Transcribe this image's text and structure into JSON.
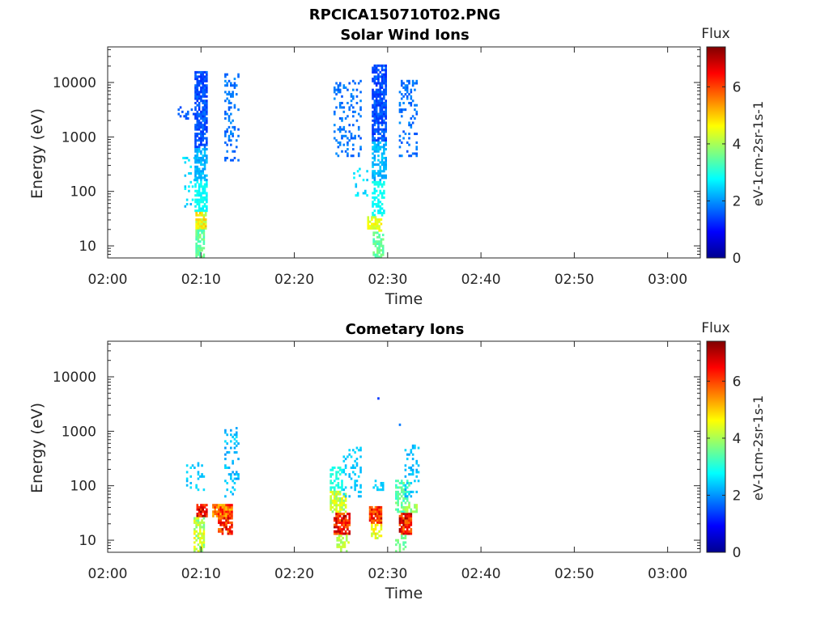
{
  "figure": {
    "title": "RPCICA150710T02.PNG"
  },
  "chart_data": [
    {
      "type": "heatmap",
      "title": "Solar Wind Ions",
      "xlabel": "Time",
      "ylabel": "Energy (eV)",
      "x_ticks": [
        "02:00",
        "02:10",
        "02:20",
        "02:30",
        "02:40",
        "02:50",
        "03:00"
      ],
      "x_range_minutes": [
        0,
        63.5
      ],
      "y_ticks": [
        10,
        100,
        1000,
        10000
      ],
      "y_scale": "log",
      "y_range": [
        6,
        45000
      ],
      "colorbar": {
        "title": "Flux",
        "label": "eV-1cm-2sr-1s-1",
        "ticks": [
          0,
          2,
          4,
          6
        ],
        "range": [
          0,
          7.4
        ],
        "colormap": "jet"
      },
      "blobs": [
        {
          "t": [
            9.3,
            10.6
          ],
          "e": [
            600,
            16000
          ],
          "v": [
            1.2,
            1.8
          ],
          "d": 0.75
        },
        {
          "t": [
            9.3,
            10.6
          ],
          "e": [
            150,
            600
          ],
          "v": [
            2.0,
            2.5
          ],
          "d": 0.65
        },
        {
          "t": [
            9.3,
            10.5
          ],
          "e": [
            40,
            150
          ],
          "v": [
            2.6,
            3.0
          ],
          "d": 0.6
        },
        {
          "t": [
            9.4,
            10.5
          ],
          "e": [
            20,
            40
          ],
          "v": [
            4.0,
            5.2
          ],
          "d": 0.85
        },
        {
          "t": [
            9.4,
            10.2
          ],
          "e": [
            6,
            20
          ],
          "v": [
            3.2,
            3.8
          ],
          "d": 0.7
        },
        {
          "t": [
            7.5,
            9.2
          ],
          "e": [
            2000,
            3500
          ],
          "v": [
            1.4,
            1.7
          ],
          "d": 0.25
        },
        {
          "t": [
            8.0,
            9.2
          ],
          "e": [
            50,
            400
          ],
          "v": [
            2.2,
            2.8
          ],
          "d": 0.12
        },
        {
          "t": [
            12.5,
            14.0
          ],
          "e": [
            350,
            14000
          ],
          "v": [
            1.5,
            2.0
          ],
          "d": 0.28
        },
        {
          "t": [
            28.3,
            29.7
          ],
          "e": [
            800,
            20000
          ],
          "v": [
            1.2,
            1.8
          ],
          "d": 0.75
        },
        {
          "t": [
            28.3,
            29.7
          ],
          "e": [
            150,
            800
          ],
          "v": [
            2.0,
            2.5
          ],
          "d": 0.6
        },
        {
          "t": [
            28.3,
            29.6
          ],
          "e": [
            35,
            150
          ],
          "v": [
            2.6,
            3.0
          ],
          "d": 0.55
        },
        {
          "t": [
            27.8,
            29.2
          ],
          "e": [
            18,
            35
          ],
          "v": [
            4.2,
            4.8
          ],
          "d": 0.7
        },
        {
          "t": [
            28.4,
            29.4
          ],
          "e": [
            6,
            18
          ],
          "v": [
            3.2,
            3.8
          ],
          "d": 0.6
        },
        {
          "t": [
            24.2,
            27.0
          ],
          "e": [
            400,
            11000
          ],
          "v": [
            1.5,
            2.0
          ],
          "d": 0.25
        },
        {
          "t": [
            26.3,
            27.8
          ],
          "e": [
            70,
            250
          ],
          "v": [
            2.3,
            2.8
          ],
          "d": 0.15
        },
        {
          "t": [
            31.2,
            33.2
          ],
          "e": [
            400,
            11000
          ],
          "v": [
            1.5,
            2.0
          ],
          "d": 0.28
        }
      ]
    },
    {
      "type": "heatmap",
      "title": "Cometary Ions",
      "xlabel": "Time",
      "ylabel": "Energy (eV)",
      "x_ticks": [
        "02:00",
        "02:10",
        "02:20",
        "02:30",
        "02:40",
        "02:50",
        "03:00"
      ],
      "x_range_minutes": [
        0,
        63.5
      ],
      "y_ticks": [
        10,
        100,
        1000,
        10000
      ],
      "y_scale": "log",
      "y_range": [
        6,
        45000
      ],
      "colorbar": {
        "title": "Flux",
        "label": "eV-1cm-2sr-1s-1",
        "ticks": [
          0,
          2,
          4,
          6
        ],
        "range": [
          0,
          7.4
        ],
        "colormap": "jet"
      },
      "blobs": [
        {
          "t": [
            9.5,
            10.6
          ],
          "e": [
            25,
            45
          ],
          "v": [
            5.8,
            7.2
          ],
          "d": 0.85
        },
        {
          "t": [
            9.2,
            10.2
          ],
          "e": [
            6,
            25
          ],
          "v": [
            3.5,
            4.8
          ],
          "d": 0.7
        },
        {
          "t": [
            8.2,
            10.2
          ],
          "e": [
            80,
            250
          ],
          "v": [
            2.2,
            2.6
          ],
          "d": 0.2
        },
        {
          "t": [
            11.2,
            13.2
          ],
          "e": [
            25,
            45
          ],
          "v": [
            5.0,
            6.5
          ],
          "d": 0.9
        },
        {
          "t": [
            11.8,
            13.2
          ],
          "e": [
            12,
            25
          ],
          "v": [
            5.5,
            7.0
          ],
          "d": 0.8
        },
        {
          "t": [
            12.5,
            14.0
          ],
          "e": [
            60,
            1200
          ],
          "v": [
            2.0,
            2.6
          ],
          "d": 0.2
        },
        {
          "t": [
            23.8,
            25.5
          ],
          "e": [
            30,
            80
          ],
          "v": [
            3.6,
            4.8
          ],
          "d": 0.75
        },
        {
          "t": [
            24.2,
            25.8
          ],
          "e": [
            12,
            30
          ],
          "v": [
            5.5,
            7.2
          ],
          "d": 0.85
        },
        {
          "t": [
            24.5,
            25.8
          ],
          "e": [
            6,
            12
          ],
          "v": [
            3.8,
            4.4
          ],
          "d": 0.6
        },
        {
          "t": [
            23.8,
            25.0
          ],
          "e": [
            80,
            220
          ],
          "v": [
            2.8,
            3.2
          ],
          "d": 0.4
        },
        {
          "t": [
            25.2,
            27.0
          ],
          "e": [
            60,
            500
          ],
          "v": [
            2.2,
            2.6
          ],
          "d": 0.22
        },
        {
          "t": [
            28.0,
            29.2
          ],
          "e": [
            20,
            40
          ],
          "v": [
            5.5,
            7.0
          ],
          "d": 0.85
        },
        {
          "t": [
            28.2,
            29.2
          ],
          "e": [
            10,
            20
          ],
          "v": [
            4.0,
            5.0
          ],
          "d": 0.6
        },
        {
          "t": [
            28.4,
            29.4
          ],
          "e": [
            80,
            120
          ],
          "v": [
            2.2,
            2.6
          ],
          "d": 0.5
        },
        {
          "t": [
            30.8,
            32.4
          ],
          "e": [
            30,
            120
          ],
          "v": [
            3.0,
            3.8
          ],
          "d": 0.6
        },
        {
          "t": [
            31.2,
            32.6
          ],
          "e": [
            12,
            30
          ],
          "v": [
            5.5,
            7.2
          ],
          "d": 0.9
        },
        {
          "t": [
            31.6,
            33.2
          ],
          "e": [
            30,
            45
          ],
          "v": [
            3.6,
            4.2
          ],
          "d": 0.55
        },
        {
          "t": [
            31.8,
            33.4
          ],
          "e": [
            60,
            550
          ],
          "v": [
            2.1,
            2.5
          ],
          "d": 0.25
        },
        {
          "t": [
            30.8,
            31.8
          ],
          "e": [
            6,
            12
          ],
          "v": [
            3.3,
            3.8
          ],
          "d": 0.45
        }
      ],
      "points": [
        {
          "t": 28.9,
          "e": 3800,
          "v": 1.3
        },
        {
          "t": 31.2,
          "e": 1250,
          "v": 1.8
        }
      ]
    }
  ]
}
